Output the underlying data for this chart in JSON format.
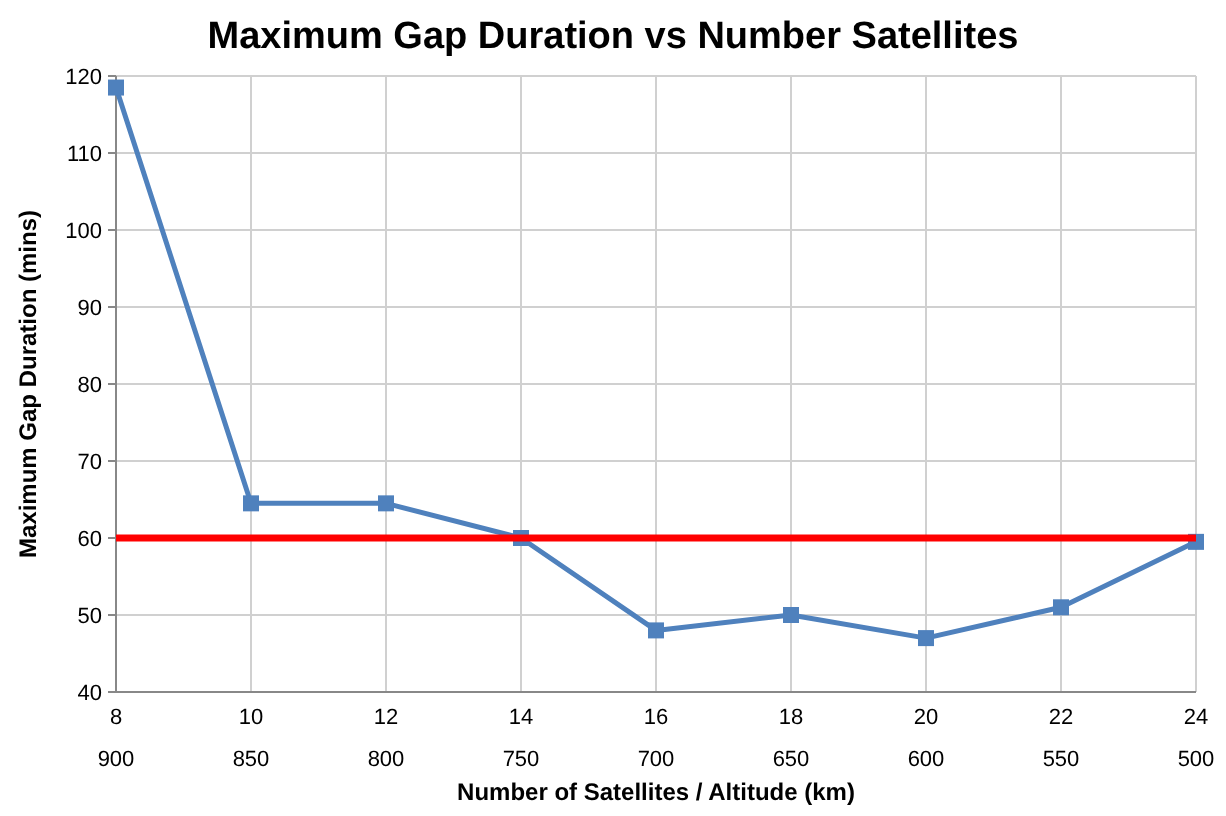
{
  "chart_data": {
    "type": "line",
    "title": "Maximum Gap Duration vs Number Satellites",
    "xlabel": "Number of Satellites / Altitude (km)",
    "ylabel": "Maximum Gap Duration (mins)",
    "categories": [
      "8\n900",
      "10\n850",
      "12\n800",
      "14\n750",
      "16\n700",
      "18\n650",
      "20\n600",
      "22\n550",
      "24\n500"
    ],
    "series": [
      {
        "color": "#4f81bd",
        "values": [
          118.5,
          64.5,
          64.5,
          60,
          48,
          50,
          47,
          51,
          59.5
        ]
      }
    ],
    "ylim": [
      40,
      120
    ],
    "yticks": [
      40,
      50,
      60,
      70,
      80,
      90,
      100,
      110,
      120
    ],
    "grid": true,
    "marker": "square",
    "line_style": "solid",
    "ref_lines": [
      {
        "axis": "y",
        "value": 60,
        "color": "#ff0000"
      }
    ]
  }
}
